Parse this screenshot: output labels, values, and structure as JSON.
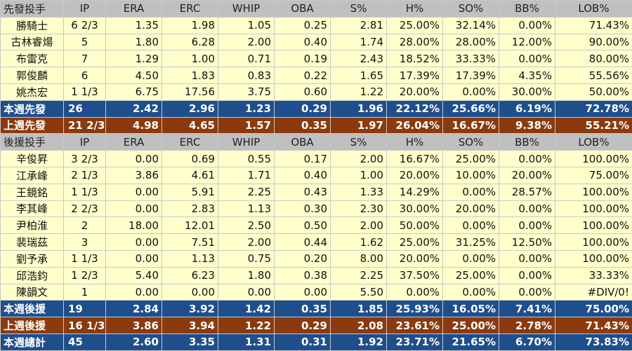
{
  "columns": [
    "IP",
    "ERA",
    "ERC",
    "WHIP",
    "OBA",
    "S%",
    "H%",
    "SO%",
    "BB%",
    "LOB%"
  ],
  "starters": {
    "header": "先發投手",
    "rows": [
      {
        "name": "勝騎士",
        "values": [
          "6 2/3",
          "1.35",
          "1.98",
          "1.05",
          "0.25",
          "2.81",
          "25.00%",
          "32.14%",
          "0.00%",
          "71.43%"
        ]
      },
      {
        "name": "古林睿煬",
        "values": [
          "5",
          "1.80",
          "6.28",
          "2.00",
          "0.40",
          "1.74",
          "28.00%",
          "28.00%",
          "12.00%",
          "90.00%"
        ]
      },
      {
        "name": "布雷克",
        "values": [
          "7",
          "1.29",
          "1.00",
          "0.71",
          "0.19",
          "2.43",
          "18.52%",
          "33.33%",
          "0.00%",
          "80.00%"
        ]
      },
      {
        "name": "郭俊麟",
        "values": [
          "6",
          "4.50",
          "1.83",
          "0.83",
          "0.22",
          "1.65",
          "17.39%",
          "17.39%",
          "4.35%",
          "55.56%"
        ]
      },
      {
        "name": "姚杰宏",
        "values": [
          "1 1/3",
          "6.75",
          "17.56",
          "3.75",
          "0.60",
          "1.22",
          "20.00%",
          "0.00%",
          "30.00%",
          "50.00%"
        ]
      }
    ],
    "this_week": {
      "name": "本週先發",
      "values": [
        "26",
        "2.42",
        "2.96",
        "1.23",
        "0.29",
        "1.96",
        "22.12%",
        "25.66%",
        "6.19%",
        "72.78%"
      ]
    },
    "last_week": {
      "name": "上週先發",
      "values": [
        "21 2/3",
        "4.98",
        "4.65",
        "1.57",
        "0.35",
        "1.97",
        "26.04%",
        "16.67%",
        "9.38%",
        "55.21%"
      ]
    }
  },
  "relievers": {
    "header": "後援投手",
    "rows": [
      {
        "name": "辛俊昇",
        "values": [
          "3 2/3",
          "0.00",
          "0.69",
          "0.55",
          "0.17",
          "2.00",
          "16.67%",
          "25.00%",
          "0.00%",
          "100.00%"
        ]
      },
      {
        "name": "江承峰",
        "values": [
          "2 1/3",
          "3.86",
          "4.61",
          "1.71",
          "0.40",
          "1.00",
          "20.00%",
          "10.00%",
          "20.00%",
          "75.00%"
        ]
      },
      {
        "name": "王鏡銘",
        "values": [
          "1 1/3",
          "0.00",
          "5.91",
          "2.25",
          "0.43",
          "1.33",
          "14.29%",
          "0.00%",
          "28.57%",
          "100.00%"
        ]
      },
      {
        "name": "李其峰",
        "values": [
          "2 2/3",
          "0.00",
          "2.83",
          "1.13",
          "0.30",
          "2.30",
          "30.00%",
          "20.00%",
          "0.00%",
          "100.00%"
        ]
      },
      {
        "name": "尹柏淮",
        "values": [
          "2",
          "18.00",
          "12.01",
          "2.50",
          "0.50",
          "2.00",
          "50.00%",
          "0.00%",
          "0.00%",
          "100.00%"
        ]
      },
      {
        "name": "裴瑞茲",
        "values": [
          "3",
          "0.00",
          "7.51",
          "2.00",
          "0.44",
          "1.62",
          "25.00%",
          "31.25%",
          "12.50%",
          "100.00%"
        ]
      },
      {
        "name": "劉予承",
        "values": [
          "1 1/3",
          "0.00",
          "1.13",
          "0.75",
          "0.20",
          "8.00",
          "20.00%",
          "0.00%",
          "0.00%",
          "100.00%"
        ]
      },
      {
        "name": "邱浩鈞",
        "values": [
          "1 2/3",
          "5.40",
          "6.23",
          "1.80",
          "0.38",
          "2.25",
          "37.50%",
          "25.00%",
          "0.00%",
          "33.33%"
        ]
      },
      {
        "name": "陳韻文",
        "values": [
          "1",
          "0.00",
          "0.00",
          "0.00",
          "0.00",
          "5.50",
          "0.00%",
          "0.00%",
          "0.00%",
          "#DIV/0!"
        ]
      }
    ],
    "this_week": {
      "name": "本週後援",
      "values": [
        "19",
        "2.84",
        "3.92",
        "1.42",
        "0.35",
        "1.85",
        "25.93%",
        "16.05%",
        "7.41%",
        "75.00%"
      ]
    },
    "last_week": {
      "name": "上週後援",
      "values": [
        "16 1/3",
        "3.86",
        "3.94",
        "1.22",
        "0.29",
        "2.08",
        "23.61%",
        "25.00%",
        "2.78%",
        "71.43%"
      ]
    }
  },
  "total": {
    "name": "本週總計",
    "values": [
      "45",
      "2.60",
      "3.35",
      "1.31",
      "0.31",
      "1.92",
      "23.71%",
      "21.65%",
      "6.70%",
      "73.83%"
    ]
  },
  "colors": {
    "header_bg": "#c0c0c0",
    "row_bg": "#ffffcc",
    "this_week_bg": "#1f4e8c",
    "last_week_bg": "#8b3a0d"
  }
}
